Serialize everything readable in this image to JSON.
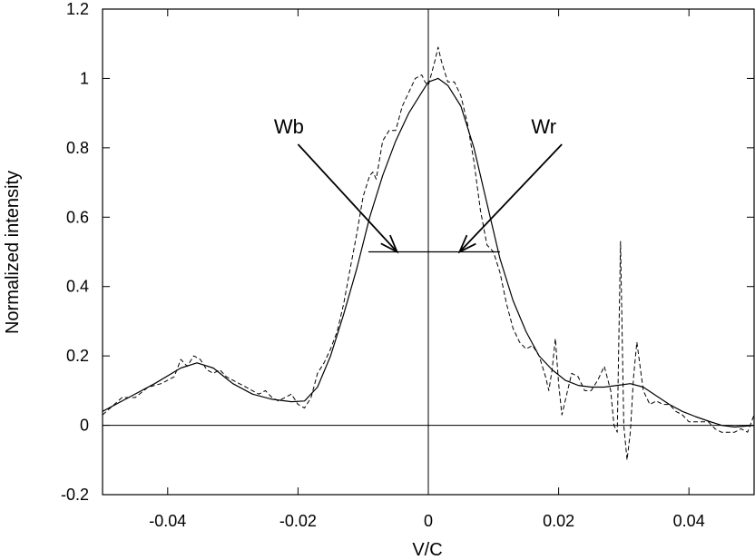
{
  "chart_data": {
    "type": "line",
    "title": "",
    "xlabel": "V/C",
    "ylabel": "Normalized intensity",
    "xlim": [
      -0.05,
      0.05
    ],
    "ylim": [
      -0.2,
      1.2
    ],
    "xticks": [
      {
        "value": -0.04,
        "label": "-0.04"
      },
      {
        "value": -0.02,
        "label": "-0.02"
      },
      {
        "value": 0,
        "label": "0"
      },
      {
        "value": 0.02,
        "label": "0.02"
      },
      {
        "value": 0.04,
        "label": "0.04"
      }
    ],
    "yticks": [
      {
        "value": -0.2,
        "label": "-0.2"
      },
      {
        "value": 0,
        "label": "0"
      },
      {
        "value": 0.2,
        "label": "0.2"
      },
      {
        "value": 0.4,
        "label": "0.4"
      },
      {
        "value": 0.6,
        "label": "0.6"
      },
      {
        "value": 0.8,
        "label": "0.8"
      },
      {
        "value": 1,
        "label": "1"
      },
      {
        "value": 1.2,
        "label": "1.2"
      }
    ],
    "grid": false,
    "legend": "none",
    "series": [
      {
        "style": "solid",
        "x": [
          -0.05,
          -0.046,
          -0.042,
          -0.038,
          -0.0355,
          -0.033,
          -0.03,
          -0.027,
          -0.024,
          -0.021,
          -0.019,
          -0.017,
          -0.015,
          -0.013,
          -0.011,
          -0.009,
          -0.007,
          -0.005,
          -0.003,
          -0.001,
          0,
          0.0015,
          0.003,
          0.005,
          0.007,
          0.009,
          0.011,
          0.013,
          0.015,
          0.017,
          0.019,
          0.021,
          0.023,
          0.025,
          0.027,
          0.029,
          0.031,
          0.033,
          0.035,
          0.037,
          0.039,
          0.041,
          0.043,
          0.045,
          0.047,
          0.05
        ],
        "y": [
          0.04,
          0.08,
          0.12,
          0.165,
          0.18,
          0.165,
          0.12,
          0.09,
          0.075,
          0.068,
          0.07,
          0.11,
          0.2,
          0.32,
          0.45,
          0.6,
          0.72,
          0.82,
          0.9,
          0.96,
          0.99,
          1.0,
          0.98,
          0.92,
          0.8,
          0.64,
          0.48,
          0.36,
          0.27,
          0.2,
          0.16,
          0.13,
          0.115,
          0.11,
          0.11,
          0.115,
          0.12,
          0.11,
          0.085,
          0.06,
          0.04,
          0.025,
          0.012,
          0.0,
          -0.005,
          0.0
        ]
      },
      {
        "style": "dashed",
        "x": [
          -0.05,
          -0.047,
          -0.045,
          -0.043,
          -0.041,
          -0.039,
          -0.038,
          -0.037,
          -0.036,
          -0.035,
          -0.034,
          -0.033,
          -0.032,
          -0.031,
          -0.03,
          -0.029,
          -0.028,
          -0.027,
          -0.026,
          -0.025,
          -0.024,
          -0.023,
          -0.022,
          -0.021,
          -0.02,
          -0.019,
          -0.018,
          -0.017,
          -0.016,
          -0.015,
          -0.014,
          -0.013,
          -0.012,
          -0.011,
          -0.01,
          -0.009,
          -0.0085,
          -0.008,
          -0.007,
          -0.006,
          -0.005,
          -0.004,
          -0.003,
          -0.002,
          -0.001,
          -0.0005,
          0,
          0.001,
          0.0015,
          0.002,
          0.003,
          0.004,
          0.005,
          0.006,
          0.007,
          0.008,
          0.009,
          0.01,
          0.011,
          0.012,
          0.013,
          0.014,
          0.015,
          0.016,
          0.017,
          0.018,
          0.0185,
          0.019,
          0.0195,
          0.02,
          0.0205,
          0.021,
          0.022,
          0.023,
          0.024,
          0.025,
          0.026,
          0.027,
          0.028,
          0.0285,
          0.029,
          0.0295,
          0.03,
          0.0305,
          0.031,
          0.0315,
          0.032,
          0.033,
          0.034,
          0.035,
          0.036,
          0.037,
          0.038,
          0.039,
          0.04,
          0.041,
          0.042,
          0.043,
          0.044,
          0.045,
          0.046,
          0.047,
          0.048,
          0.049,
          0.05
        ],
        "y": [
          0.03,
          0.08,
          0.08,
          0.11,
          0.12,
          0.14,
          0.19,
          0.17,
          0.2,
          0.19,
          0.16,
          0.15,
          0.16,
          0.14,
          0.13,
          0.12,
          0.11,
          0.1,
          0.09,
          0.1,
          0.08,
          0.07,
          0.08,
          0.09,
          0.06,
          0.05,
          0.08,
          0.15,
          0.18,
          0.22,
          0.27,
          0.35,
          0.45,
          0.55,
          0.66,
          0.72,
          0.73,
          0.71,
          0.82,
          0.85,
          0.85,
          0.92,
          0.96,
          1.0,
          1.01,
          0.99,
          0.98,
          1.05,
          1.09,
          1.05,
          0.99,
          0.99,
          0.95,
          0.87,
          0.76,
          0.62,
          0.52,
          0.5,
          0.44,
          0.35,
          0.28,
          0.24,
          0.22,
          0.23,
          0.2,
          0.14,
          0.1,
          0.16,
          0.25,
          0.12,
          0.03,
          0.07,
          0.15,
          0.14,
          0.1,
          0.1,
          0.13,
          0.17,
          0.1,
          0.0,
          -0.02,
          0.53,
          0.0,
          -0.1,
          -0.02,
          0.14,
          0.24,
          0.1,
          0.06,
          0.07,
          0.06,
          0.06,
          0.04,
          0.03,
          0.01,
          0.01,
          0.01,
          0.01,
          -0.01,
          -0.02,
          -0.02,
          -0.02,
          -0.01,
          -0.02,
          0.03
        ]
      }
    ],
    "reference_lines": {
      "zero_y": 0,
      "zero_x": 0,
      "half_max": {
        "y": 0.5,
        "x_from": -0.0092,
        "x_to": 0.011
      }
    },
    "annotations": [
      {
        "text": "Wb",
        "from": [
          -0.02,
          0.81
        ],
        "to": [
          -0.0048,
          0.5
        ]
      },
      {
        "text": "Wr",
        "from": [
          0.0205,
          0.81
        ],
        "to": [
          0.0048,
          0.5
        ]
      }
    ]
  }
}
